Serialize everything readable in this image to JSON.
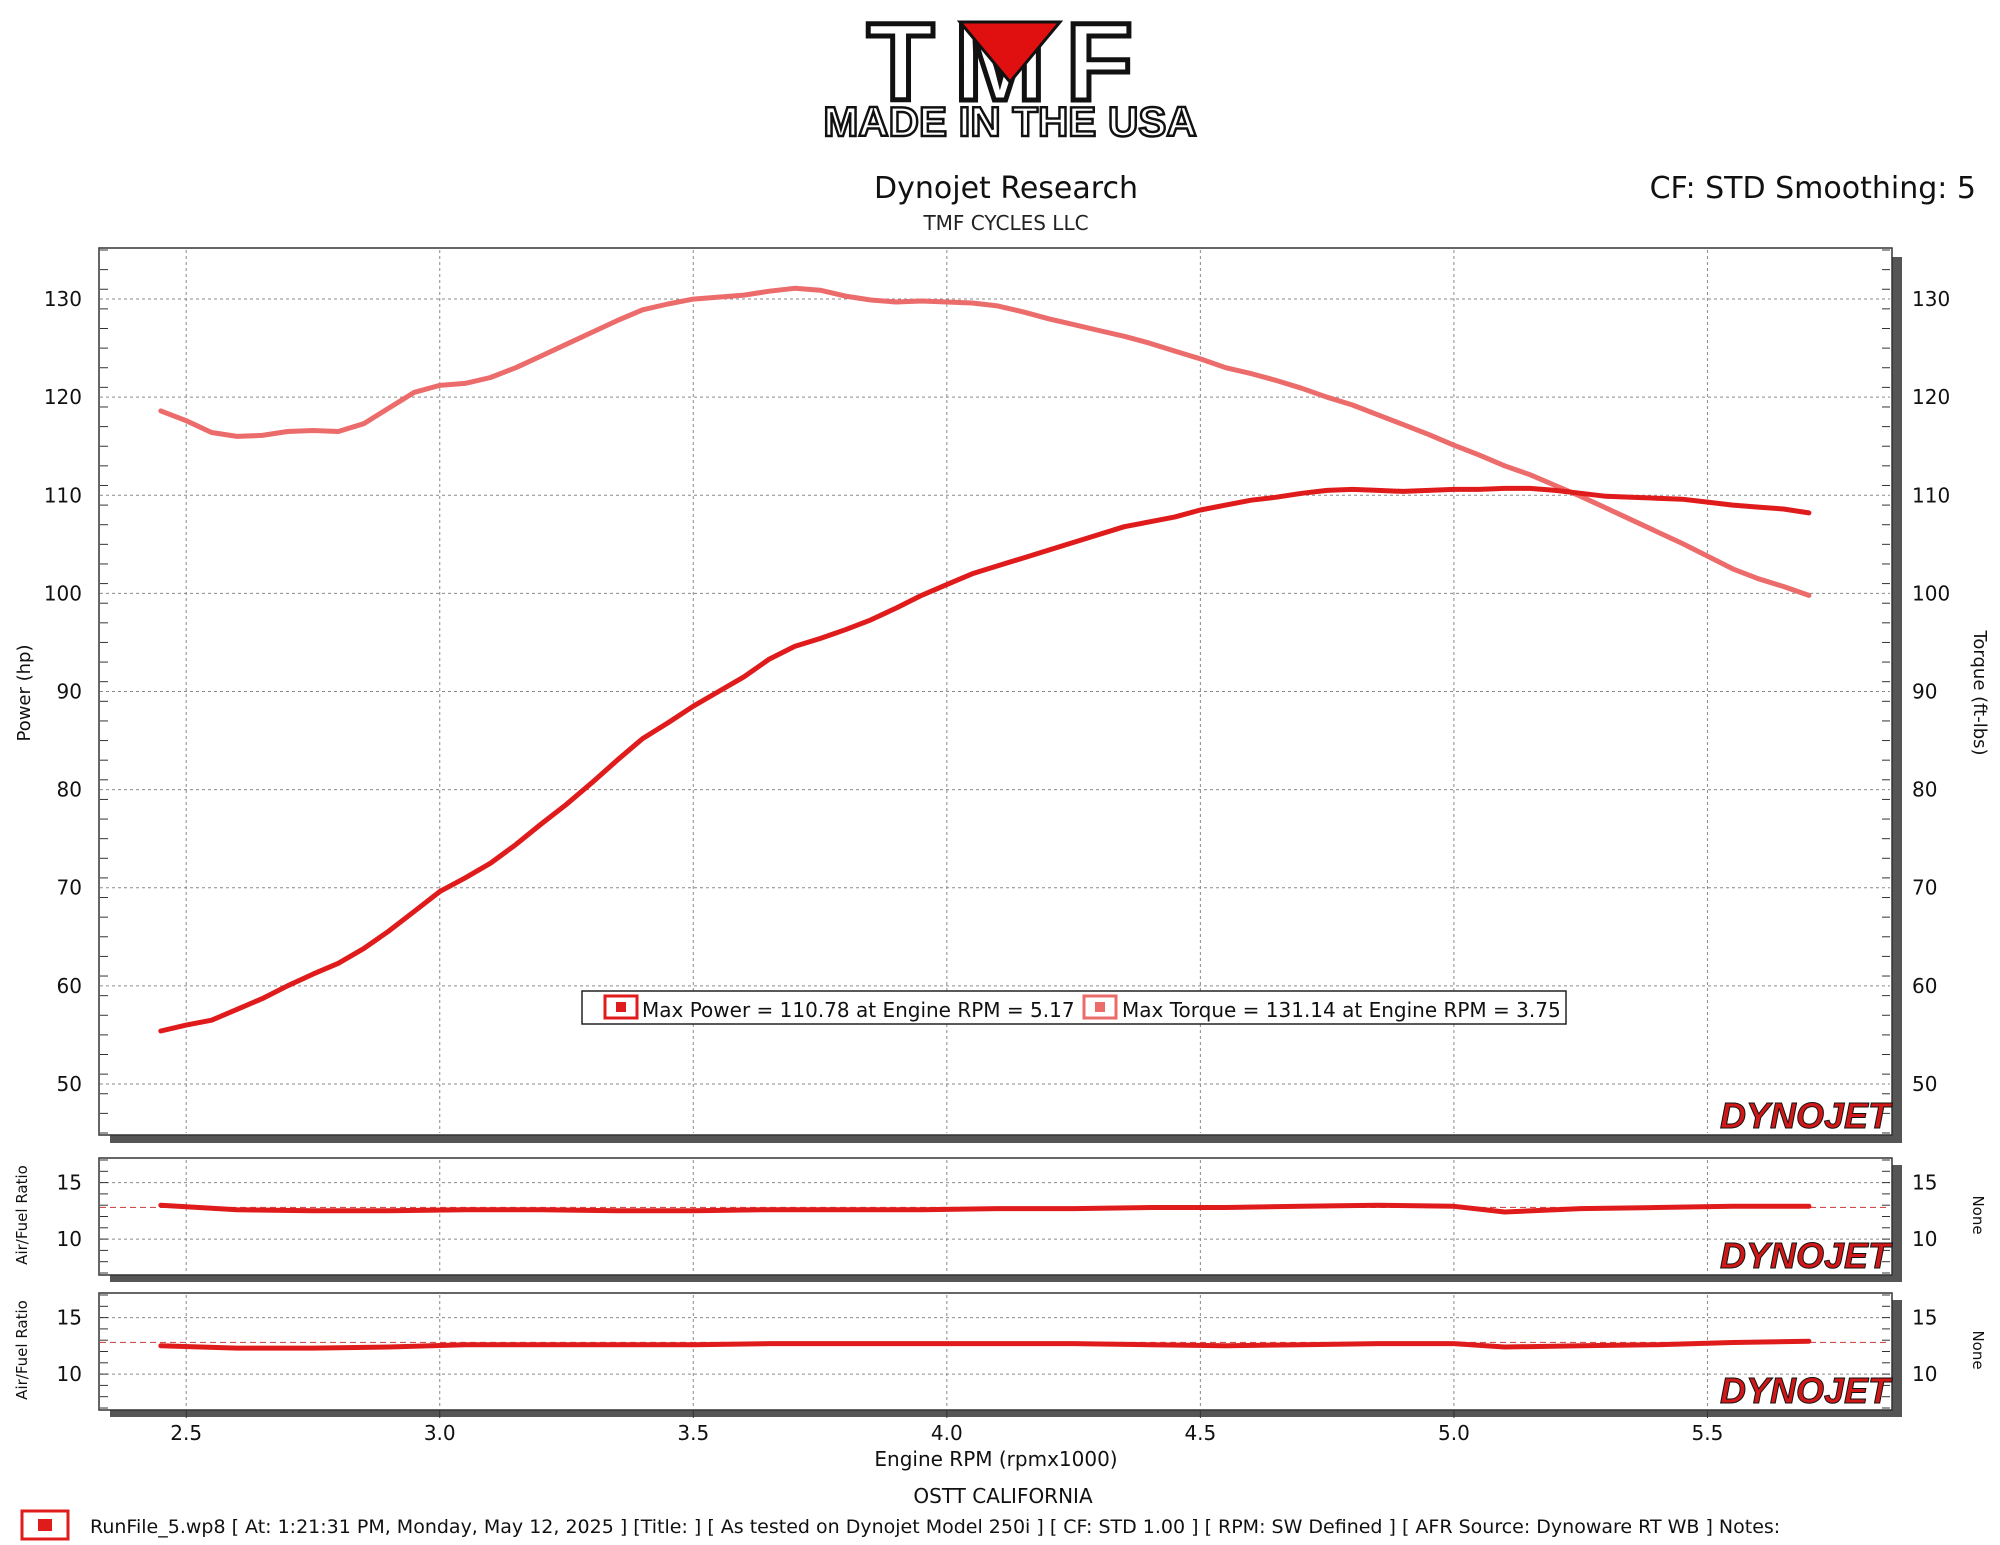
{
  "logo": {
    "brand": "TMF",
    "tagline": "MADE IN THE USA"
  },
  "header": {
    "title": "Dynojet Research",
    "subtitle": "TMF CYCLES LLC",
    "cf_smoothing": "CF: STD Smoothing: 5"
  },
  "footer": {
    "location": "OSTT CALIFORNIA",
    "runfile": "RunFile_5.wp8 [ At: 1:21:31 PM, Monday, May 12, 2025 ] [Title: ]  [ As tested on Dynojet Model 250i ] [ CF: STD 1.00 ] [ RPM: SW Defined ] [ AFR Source: Dynoware RT WB ] Notes:"
  },
  "watermark": "DYNOJET",
  "colors": {
    "power": "#e01b1b",
    "torque": "#ec6b6b",
    "grid": "#8a8a8a",
    "target": "#d05050"
  },
  "chart_data": [
    {
      "type": "line",
      "xlabel": "Engine RPM (rpmx1000)",
      "ylabel": "Power (hp)",
      "y2label": "Torque (ft-lbs)",
      "xlim": [
        2.33,
        5.86
      ],
      "ylim": [
        45,
        135
      ],
      "xticks": [
        2.5,
        3.0,
        3.5,
        4.0,
        4.5,
        5.0,
        5.5
      ],
      "yticks": [
        50,
        60,
        70,
        80,
        90,
        100,
        110,
        120,
        130
      ],
      "grid": true,
      "legend": {
        "placement": "bottom-center",
        "entries": [
          "Max Power = 110.78 at Engine RPM = 5.17",
          "Max Torque = 131.14 at Engine RPM = 3.75"
        ]
      },
      "series": [
        {
          "axis": "left",
          "x": [
            2.45,
            2.5,
            2.55,
            2.6,
            2.65,
            2.7,
            2.75,
            2.8,
            2.85,
            2.9,
            2.95,
            3.0,
            3.05,
            3.1,
            3.15,
            3.2,
            3.25,
            3.3,
            3.35,
            3.4,
            3.45,
            3.5,
            3.55,
            3.6,
            3.65,
            3.7,
            3.75,
            3.8,
            3.85,
            3.9,
            3.95,
            4.0,
            4.05,
            4.1,
            4.15,
            4.2,
            4.25,
            4.3,
            4.35,
            4.4,
            4.45,
            4.5,
            4.55,
            4.6,
            4.65,
            4.7,
            4.75,
            4.8,
            4.85,
            4.9,
            4.95,
            5.0,
            5.05,
            5.1,
            5.15,
            5.2,
            5.25,
            5.3,
            5.35,
            5.4,
            5.45,
            5.5,
            5.55,
            5.6,
            5.65,
            5.7
          ],
          "values": [
            55.4,
            56.0,
            56.5,
            57.6,
            58.7,
            60.0,
            61.2,
            62.3,
            63.8,
            65.6,
            67.6,
            69.6,
            71.0,
            72.5,
            74.4,
            76.5,
            78.5,
            80.7,
            83.0,
            85.2,
            86.8,
            88.5,
            90.0,
            91.5,
            93.3,
            94.6,
            95.4,
            96.3,
            97.3,
            98.5,
            99.8,
            100.9,
            102.0,
            102.8,
            103.6,
            104.4,
            105.2,
            106.0,
            106.8,
            107.3,
            107.8,
            108.5,
            109.0,
            109.5,
            109.8,
            110.2,
            110.5,
            110.6,
            110.5,
            110.4,
            110.5,
            110.6,
            110.6,
            110.7,
            110.7,
            110.5,
            110.2,
            109.9,
            109.8,
            109.7,
            109.6,
            109.3,
            109.0,
            108.8,
            108.6,
            108.2
          ]
        },
        {
          "axis": "right",
          "x": [
            2.45,
            2.5,
            2.55,
            2.6,
            2.65,
            2.7,
            2.75,
            2.8,
            2.85,
            2.9,
            2.95,
            3.0,
            3.05,
            3.1,
            3.15,
            3.2,
            3.25,
            3.3,
            3.35,
            3.4,
            3.45,
            3.5,
            3.55,
            3.6,
            3.65,
            3.7,
            3.75,
            3.8,
            3.85,
            3.9,
            3.95,
            4.0,
            4.05,
            4.1,
            4.15,
            4.2,
            4.25,
            4.3,
            4.35,
            4.4,
            4.45,
            4.5,
            4.55,
            4.6,
            4.65,
            4.7,
            4.75,
            4.8,
            4.85,
            4.9,
            4.95,
            5.0,
            5.05,
            5.1,
            5.15,
            5.2,
            5.25,
            5.3,
            5.35,
            5.4,
            5.45,
            5.5,
            5.55,
            5.6,
            5.65,
            5.7
          ],
          "values": [
            118.6,
            117.6,
            116.4,
            116.0,
            116.1,
            116.5,
            116.6,
            116.5,
            117.3,
            118.9,
            120.5,
            121.2,
            121.4,
            122.0,
            123.0,
            124.2,
            125.4,
            126.6,
            127.8,
            128.9,
            129.5,
            130.0,
            130.2,
            130.4,
            130.8,
            131.1,
            130.9,
            130.3,
            129.9,
            129.7,
            129.8,
            129.7,
            129.6,
            129.3,
            128.7,
            128.0,
            127.4,
            126.8,
            126.2,
            125.5,
            124.7,
            123.9,
            123.0,
            122.4,
            121.7,
            120.9,
            120.0,
            119.2,
            118.2,
            117.2,
            116.2,
            115.1,
            114.1,
            113.0,
            112.1,
            111.0,
            109.9,
            108.7,
            107.5,
            106.3,
            105.1,
            103.8,
            102.5,
            101.5,
            100.7,
            99.8
          ]
        }
      ]
    },
    {
      "type": "line",
      "ylabel": "Air/Fuel Ratio",
      "y2label": "None",
      "xlim": [
        2.33,
        5.86
      ],
      "ylim": [
        7,
        17
      ],
      "yticks": [
        10,
        15
      ],
      "target": 12.8,
      "grid": true,
      "series": [
        {
          "x": [
            2.45,
            2.6,
            2.75,
            2.9,
            3.05,
            3.2,
            3.35,
            3.5,
            3.65,
            3.8,
            3.95,
            4.1,
            4.25,
            4.4,
            4.55,
            4.7,
            4.85,
            5.0,
            5.1,
            5.25,
            5.4,
            5.55,
            5.7
          ],
          "values": [
            13.0,
            12.6,
            12.5,
            12.5,
            12.6,
            12.6,
            12.5,
            12.5,
            12.6,
            12.6,
            12.6,
            12.7,
            12.7,
            12.8,
            12.8,
            12.9,
            13.0,
            12.9,
            12.4,
            12.7,
            12.8,
            12.9,
            12.9
          ]
        }
      ]
    },
    {
      "type": "line",
      "ylabel": "Air/Fuel Ratio",
      "y2label": "None",
      "xlim": [
        2.33,
        5.86
      ],
      "ylim": [
        7,
        17
      ],
      "yticks": [
        10,
        15
      ],
      "target": 12.8,
      "grid": true,
      "series": [
        {
          "x": [
            2.45,
            2.6,
            2.75,
            2.9,
            3.05,
            3.2,
            3.35,
            3.5,
            3.65,
            3.8,
            3.95,
            4.1,
            4.25,
            4.4,
            4.55,
            4.7,
            4.85,
            5.0,
            5.1,
            5.25,
            5.4,
            5.55,
            5.7
          ],
          "values": [
            12.5,
            12.3,
            12.3,
            12.4,
            12.6,
            12.6,
            12.6,
            12.6,
            12.7,
            12.7,
            12.7,
            12.7,
            12.7,
            12.6,
            12.5,
            12.6,
            12.7,
            12.7,
            12.4,
            12.5,
            12.6,
            12.8,
            12.9
          ]
        }
      ]
    }
  ]
}
